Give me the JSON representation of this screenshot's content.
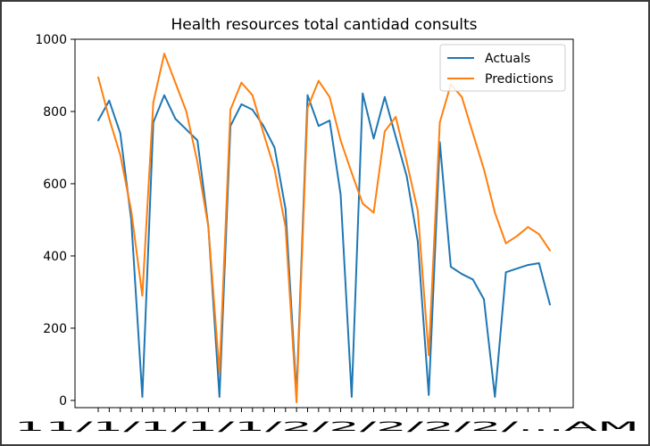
{
  "chart_data": {
    "type": "line",
    "title": "Health resources total cantidad consults",
    "xlabel": "",
    "ylabel": "",
    "ylim": [
      -20,
      1000
    ],
    "yticks": [
      0,
      200,
      400,
      600,
      800,
      1000
    ],
    "x_tick_label_overlapped_text": "11/1/1/1/1/2/2/2/2/2/...AM",
    "legend_position": "top-right",
    "grid": false,
    "colors": {
      "Actuals": "#1f77b4",
      "Predictions": "#ff7f0e"
    },
    "series": [
      {
        "name": "Actuals",
        "values": [
          775,
          830,
          740,
          500,
          10,
          770,
          845,
          780,
          750,
          720,
          480,
          10,
          760,
          820,
          805,
          760,
          700,
          530,
          15,
          845,
          760,
          775,
          570,
          10,
          850,
          725,
          840,
          730,
          620,
          440,
          15,
          715,
          370,
          350,
          335,
          280,
          10,
          355,
          365,
          375,
          380,
          265
        ]
      },
      {
        "name": "Predictions",
        "values": [
          895,
          780,
          680,
          525,
          290,
          825,
          960,
          880,
          800,
          660,
          480,
          75,
          805,
          880,
          845,
          740,
          640,
          480,
          -5,
          810,
          885,
          840,
          720,
          630,
          545,
          520,
          745,
          785,
          660,
          525,
          125,
          770,
          875,
          840,
          740,
          640,
          520,
          435,
          455,
          480,
          460,
          415
        ]
      }
    ],
    "legend_labels": [
      "Actuals",
      "Predictions"
    ]
  }
}
